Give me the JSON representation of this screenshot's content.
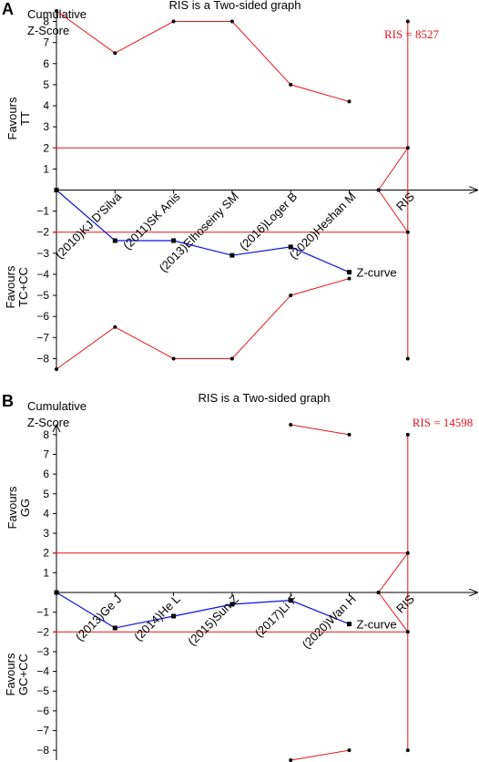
{
  "chart_data": [
    {
      "type": "line",
      "panel_label": "A",
      "title": "RIS is a Two-sided graph",
      "ylabel_top": [
        "Cumulative",
        "Z-Score"
      ],
      "favours_upper": [
        "Favours",
        "TT"
      ],
      "favours_lower": [
        "Favours",
        "TC+CC"
      ],
      "ris_label": "RIS = 8527",
      "ris_tick_label": "RIS",
      "z_curve_label": "Z-curve",
      "ylim": [
        -8.5,
        8.5
      ],
      "y_ticks": [
        8,
        7,
        6,
        5,
        4,
        3,
        2,
        1,
        -1,
        -2,
        -3,
        -4,
        -5,
        -6,
        -7,
        -8
      ],
      "x_index_range": [
        0,
        6
      ],
      "studies": [
        "(2010)KJ D'Silva",
        "(2011)SK Anis",
        "(2013)Elhoseiny SM",
        "(2016)Loger B",
        "(2020)Heshan M"
      ],
      "z_curve": {
        "x": [
          0,
          1,
          2,
          3,
          4,
          5
        ],
        "y": [
          0,
          -2.4,
          -2.4,
          -3.1,
          -2.7,
          -3.9
        ]
      },
      "upper_boundary": {
        "x": [
          0,
          1,
          2,
          3,
          4,
          5
        ],
        "y": [
          8.5,
          6.5,
          8,
          8,
          5,
          4.2
        ]
      },
      "lower_boundary": {
        "x": [
          0,
          1,
          2,
          3,
          4,
          5
        ],
        "y": [
          -8.5,
          -6.5,
          -8,
          -8,
          -5,
          -4.2
        ]
      },
      "futility_lines": {
        "x": [
          5.5,
          6
        ],
        "upper_y": [
          0,
          2
        ],
        "lower_y": [
          0,
          -2
        ]
      },
      "ris_x": 6,
      "ris_range": [
        -8,
        8
      ],
      "conventional_boundaries": [
        2,
        -2
      ]
    },
    {
      "type": "line",
      "panel_label": "B",
      "title": "RIS is a Two-sided graph",
      "ylabel_top": [
        "Cumulative",
        "Z-Score"
      ],
      "favours_upper": [
        "Favours",
        "GG"
      ],
      "favours_lower": [
        "Favours",
        "GC+CC"
      ],
      "ris_label": "RIS = 14598",
      "ris_tick_label": "RIS",
      "z_curve_label": "Z-curve",
      "ylim": [
        -8.5,
        8.5
      ],
      "y_ticks": [
        8,
        7,
        6,
        5,
        4,
        3,
        2,
        1,
        -1,
        -2,
        -3,
        -4,
        -5,
        -6,
        -7,
        -8
      ],
      "x_index_range": [
        0,
        6
      ],
      "studies": [
        "(2013)Ge J",
        "(2014)He L",
        "(2015)Sun Z",
        "(2017)Li F",
        "(2020)Wan H"
      ],
      "z_curve": {
        "x": [
          0,
          1,
          2,
          3,
          4,
          5
        ],
        "y": [
          0,
          -1.8,
          -1.2,
          -0.6,
          -0.4,
          -1.6
        ]
      },
      "upper_boundary": {
        "x": [
          4,
          5
        ],
        "y": [
          8.5,
          8
        ]
      },
      "lower_boundary": {
        "x": [
          4,
          5
        ],
        "y": [
          -8.5,
          -8
        ]
      },
      "futility_lines": {
        "x": [
          5.5,
          6
        ],
        "upper_y": [
          0,
          2
        ],
        "lower_y": [
          0,
          -2
        ]
      },
      "ris_x": 6,
      "ris_range": [
        -8,
        8
      ],
      "conventional_boundaries": [
        2,
        -2
      ]
    }
  ]
}
